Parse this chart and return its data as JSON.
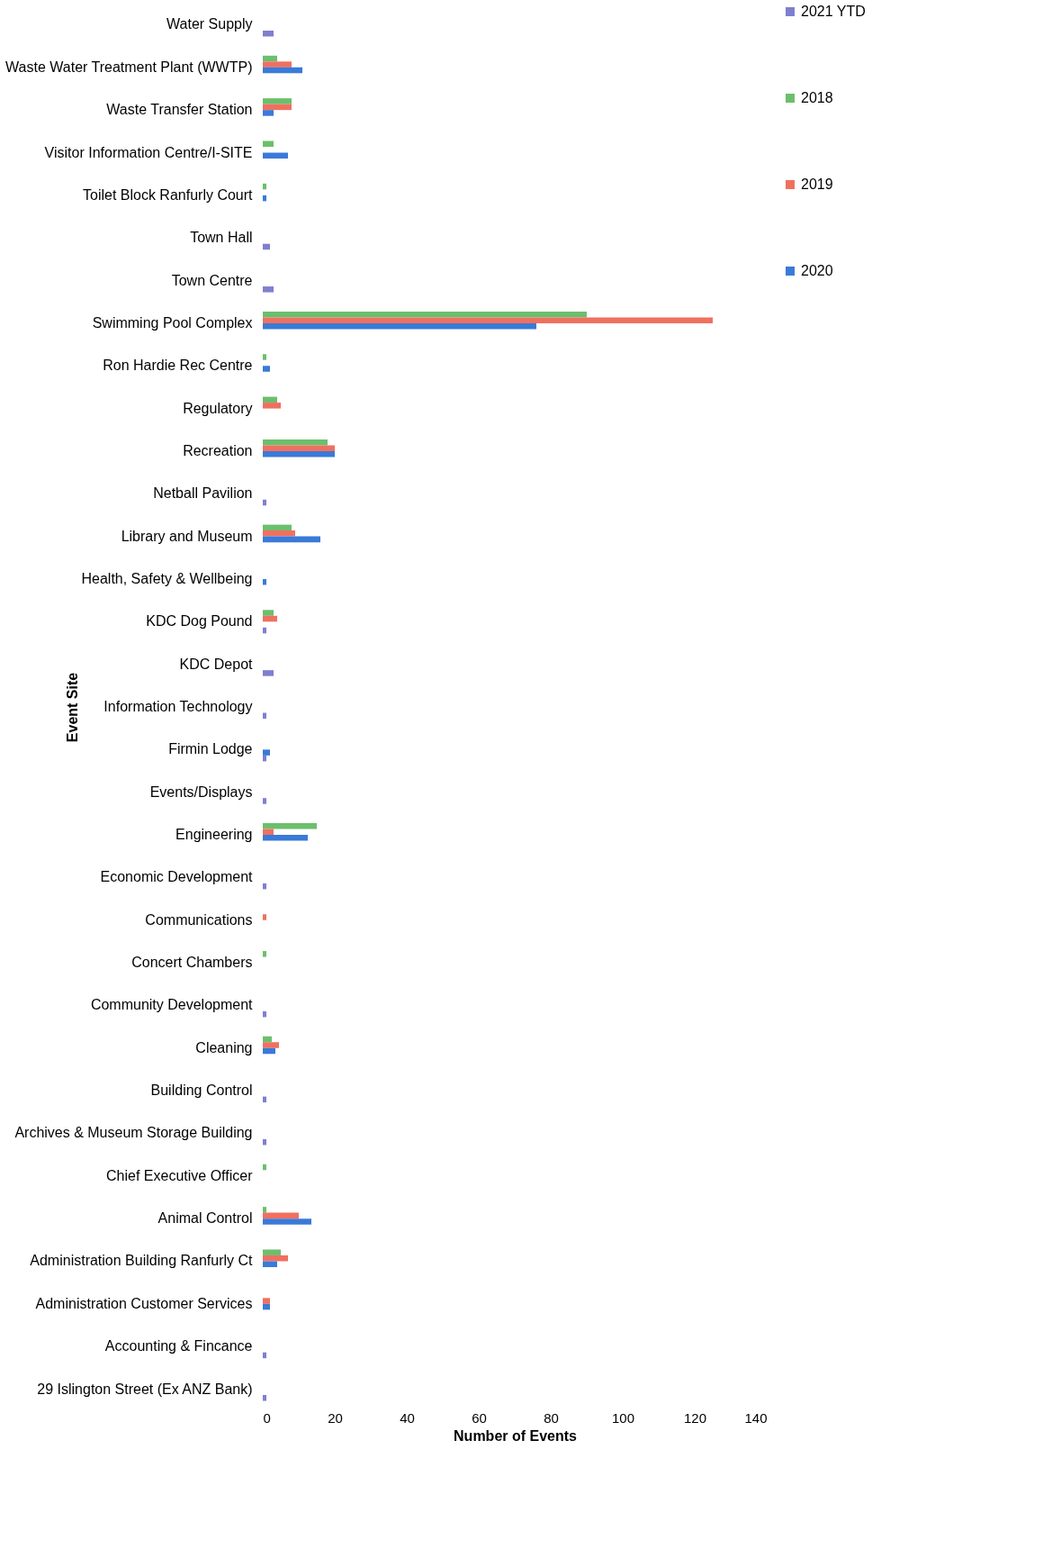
{
  "chart_data": {
    "type": "bar",
    "orientation": "horizontal",
    "xlabel": "Number of Events",
    "ylabel": "Event Site",
    "categories": [
      "Water Supply",
      "Waste Water Treatment Plant (WWTP)",
      "Waste Transfer Station",
      "Visitor Information Centre/I-SITE",
      "Toilet Block Ranfurly Court",
      "Town Hall",
      "Town Centre",
      "Swimming Pool Complex",
      "Ron Hardie Rec Centre",
      "Regulatory",
      "Recreation",
      "Netball Pavilion",
      "Library and Museum",
      "Health, Safety & Wellbeing",
      "KDC Dog Pound",
      "KDC Depot",
      "Information Technology",
      "Firmin Lodge",
      "Events/Displays",
      "Engineering",
      "Economic Development",
      "Communications",
      "Concert Chambers",
      "Community Development",
      "Cleaning",
      "Building Control",
      "Archives & Museum Storage Building",
      "Chief Executive Officer",
      "Animal Control",
      "Administration Building Ranfurly Ct",
      "Administration Customer Services",
      "Accounting & Fincance",
      "29 Islington Street (Ex ANZ Bank)"
    ],
    "series": [
      {
        "name": "2021 YTD",
        "color": "#7f7fd0",
        "values": [
          3,
          null,
          null,
          null,
          null,
          2,
          3,
          null,
          null,
          null,
          null,
          1,
          null,
          null,
          1,
          3,
          1,
          1,
          1,
          null,
          1,
          null,
          null,
          1,
          null,
          1,
          1,
          null,
          null,
          null,
          null,
          1,
          1
        ]
      },
      {
        "name": "2018",
        "color": "#6cbf6c",
        "values": [
          null,
          4,
          8,
          3,
          1,
          null,
          null,
          90,
          1,
          4,
          18,
          null,
          8,
          null,
          3,
          null,
          null,
          null,
          null,
          15,
          null,
          null,
          1,
          null,
          2.5,
          null,
          null,
          1,
          1,
          5,
          null,
          null,
          null
        ]
      },
      {
        "name": "2019",
        "color": "#f07060",
        "values": [
          null,
          8,
          8,
          null,
          null,
          null,
          null,
          125,
          null,
          5,
          20,
          null,
          9,
          null,
          4,
          null,
          null,
          null,
          null,
          3,
          null,
          1,
          null,
          null,
          4.5,
          null,
          null,
          null,
          10,
          7,
          2,
          null,
          null
        ]
      },
      {
        "name": "2020",
        "color": "#3a7ad8",
        "values": [
          null,
          11,
          3,
          7,
          1,
          null,
          null,
          76,
          2,
          null,
          20,
          null,
          16,
          1,
          null,
          null,
          null,
          2,
          null,
          12.5,
          null,
          null,
          null,
          null,
          3.5,
          null,
          null,
          null,
          13.5,
          4,
          2,
          null,
          null
        ]
      }
    ],
    "xlim": [
      0,
      140
    ],
    "xticks": [
      0,
      20,
      40,
      60,
      80,
      100,
      120,
      140
    ],
    "legend": "right"
  }
}
